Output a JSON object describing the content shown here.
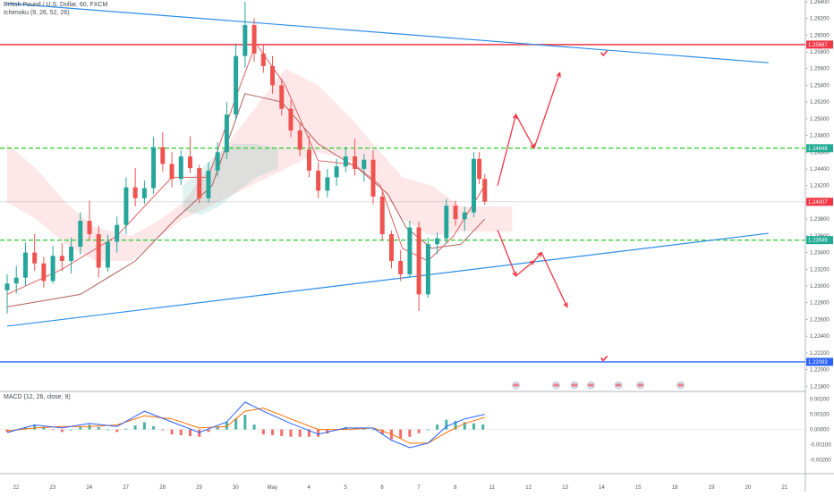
{
  "chart_data": [
    {
      "type": "candlestick",
      "title": "British Pound / U.S. Dollar, 60, FXCM",
      "indicator_label": "Ichimoku (9, 26, 52, 26)",
      "price_scale": [
        "1.26400",
        "1.26200",
        "1.26000",
        "1.25800",
        "1.25600",
        "1.25400",
        "1.25200",
        "1.25000",
        "1.24800",
        "1.24600",
        "1.24400",
        "1.24200",
        "1.24000",
        "1.23800",
        "1.23600",
        "1.23400",
        "1.23200",
        "1.23000",
        "1.22800",
        "1.22600",
        "1.22400",
        "1.22200",
        "1.22000",
        "1.21800"
      ],
      "ylim": [
        1.2175,
        1.2642
      ],
      "time_labels": [
        "22",
        "23",
        "24",
        "27",
        "28",
        "29",
        "30",
        "May",
        "4",
        "5",
        "6",
        "7",
        "8",
        "11",
        "12",
        "13",
        "14",
        "15",
        "18",
        "19",
        "20",
        "21"
      ],
      "price_badges": [
        {
          "label": "1.25887",
          "value": 1.25887,
          "color": "#f23645"
        },
        {
          "label": "1.24648",
          "value": 1.24648,
          "color": "#22ab94"
        },
        {
          "label": "1.24007",
          "value": 1.24007,
          "color": "#f23645"
        },
        {
          "label": "1.23549",
          "value": 1.23549,
          "color": "#22ab94"
        },
        {
          "label": "1.22093",
          "value": 1.22093,
          "color": "#2962ff"
        }
      ],
      "horizontal_levels": [
        {
          "value": 1.25887,
          "style": "solid",
          "color": "#f23645"
        },
        {
          "value": 1.24648,
          "style": "dashed",
          "color": "#37d137"
        },
        {
          "value": 1.23549,
          "style": "dashed",
          "color": "#37d137"
        },
        {
          "value": 1.22093,
          "style": "solid",
          "color": "#2962ff"
        }
      ],
      "trend_lines": [
        {
          "from": [
            0,
            1.2638
          ],
          "to": [
            20.8,
            1.2567
          ],
          "color": "#2c8ee8"
        },
        {
          "from": [
            0,
            1.2252
          ],
          "to": [
            20.8,
            1.2363
          ],
          "color": "#2c8ee8"
        }
      ],
      "candles": [
        {
          "x": 0.0,
          "o": 1.2295,
          "h": 1.2314,
          "l": 1.2267,
          "c": 1.2303
        },
        {
          "x": 0.25,
          "o": 1.2303,
          "h": 1.2324,
          "l": 1.2291,
          "c": 1.231
        },
        {
          "x": 0.5,
          "o": 1.231,
          "h": 1.2352,
          "l": 1.23,
          "c": 1.234
        },
        {
          "x": 0.75,
          "o": 1.234,
          "h": 1.2362,
          "l": 1.2318,
          "c": 1.2327
        },
        {
          "x": 1.0,
          "o": 1.2327,
          "h": 1.2335,
          "l": 1.2298,
          "c": 1.2306
        },
        {
          "x": 1.25,
          "o": 1.2306,
          "h": 1.2348,
          "l": 1.2303,
          "c": 1.2336
        },
        {
          "x": 1.5,
          "o": 1.2336,
          "h": 1.2351,
          "l": 1.2318,
          "c": 1.233
        },
        {
          "x": 1.75,
          "o": 1.233,
          "h": 1.2358,
          "l": 1.2315,
          "c": 1.2347
        },
        {
          "x": 2.0,
          "o": 1.2347,
          "h": 1.2388,
          "l": 1.2338,
          "c": 1.2378
        },
        {
          "x": 2.25,
          "o": 1.2378,
          "h": 1.2402,
          "l": 1.2355,
          "c": 1.2362
        },
        {
          "x": 2.5,
          "o": 1.2362,
          "h": 1.2372,
          "l": 1.231,
          "c": 1.2322
        },
        {
          "x": 2.75,
          "o": 1.2322,
          "h": 1.2361,
          "l": 1.2317,
          "c": 1.2353
        },
        {
          "x": 3.0,
          "o": 1.2353,
          "h": 1.2383,
          "l": 1.234,
          "c": 1.2373
        },
        {
          "x": 3.25,
          "o": 1.2373,
          "h": 1.243,
          "l": 1.2362,
          "c": 1.2418
        },
        {
          "x": 3.5,
          "o": 1.2418,
          "h": 1.2441,
          "l": 1.2395,
          "c": 1.2405
        },
        {
          "x": 3.75,
          "o": 1.2405,
          "h": 1.2426,
          "l": 1.2398,
          "c": 1.2417
        },
        {
          "x": 4.0,
          "o": 1.2417,
          "h": 1.2478,
          "l": 1.241,
          "c": 1.2466
        },
        {
          "x": 4.25,
          "o": 1.2466,
          "h": 1.2484,
          "l": 1.2437,
          "c": 1.2446
        },
        {
          "x": 4.5,
          "o": 1.2446,
          "h": 1.246,
          "l": 1.2418,
          "c": 1.2428
        },
        {
          "x": 4.75,
          "o": 1.2428,
          "h": 1.2462,
          "l": 1.2421,
          "c": 1.2455
        },
        {
          "x": 5.0,
          "o": 1.2455,
          "h": 1.2479,
          "l": 1.2435,
          "c": 1.2441
        },
        {
          "x": 5.25,
          "o": 1.2441,
          "h": 1.2445,
          "l": 1.2399,
          "c": 1.2405
        },
        {
          "x": 5.5,
          "o": 1.2405,
          "h": 1.2448,
          "l": 1.24,
          "c": 1.2438
        },
        {
          "x": 5.75,
          "o": 1.2438,
          "h": 1.2472,
          "l": 1.2431,
          "c": 1.246
        },
        {
          "x": 6.0,
          "o": 1.246,
          "h": 1.252,
          "l": 1.2452,
          "c": 1.2505
        },
        {
          "x": 6.25,
          "o": 1.2505,
          "h": 1.259,
          "l": 1.2498,
          "c": 1.2575
        },
        {
          "x": 6.5,
          "o": 1.2575,
          "h": 1.264,
          "l": 1.2561,
          "c": 1.2612
        },
        {
          "x": 6.75,
          "o": 1.2612,
          "h": 1.262,
          "l": 1.2568,
          "c": 1.2578
        },
        {
          "x": 7.0,
          "o": 1.2578,
          "h": 1.2589,
          "l": 1.2555,
          "c": 1.2563
        },
        {
          "x": 7.25,
          "o": 1.2563,
          "h": 1.2575,
          "l": 1.253,
          "c": 1.254
        },
        {
          "x": 7.5,
          "o": 1.254,
          "h": 1.2548,
          "l": 1.2504,
          "c": 1.2512
        },
        {
          "x": 7.75,
          "o": 1.2512,
          "h": 1.2522,
          "l": 1.2478,
          "c": 1.2486
        },
        {
          "x": 8.0,
          "o": 1.2486,
          "h": 1.2495,
          "l": 1.2455,
          "c": 1.2463
        },
        {
          "x": 8.25,
          "o": 1.2463,
          "h": 1.248,
          "l": 1.243,
          "c": 1.2438
        },
        {
          "x": 8.5,
          "o": 1.2438,
          "h": 1.2448,
          "l": 1.2405,
          "c": 1.2414
        },
        {
          "x": 8.75,
          "o": 1.2414,
          "h": 1.244,
          "l": 1.2406,
          "c": 1.243
        },
        {
          "x": 9.0,
          "o": 1.243,
          "h": 1.2452,
          "l": 1.242,
          "c": 1.2443
        },
        {
          "x": 9.25,
          "o": 1.2443,
          "h": 1.2466,
          "l": 1.2436,
          "c": 1.2455
        },
        {
          "x": 9.5,
          "o": 1.2455,
          "h": 1.2476,
          "l": 1.2432,
          "c": 1.244
        },
        {
          "x": 9.75,
          "o": 1.244,
          "h": 1.2458,
          "l": 1.2425,
          "c": 1.2451
        },
        {
          "x": 10.0,
          "o": 1.2451,
          "h": 1.2462,
          "l": 1.2398,
          "c": 1.2407
        },
        {
          "x": 10.25,
          "o": 1.2407,
          "h": 1.2412,
          "l": 1.2354,
          "c": 1.2362
        },
        {
          "x": 10.5,
          "o": 1.2362,
          "h": 1.2366,
          "l": 1.2321,
          "c": 1.233
        },
        {
          "x": 10.75,
          "o": 1.233,
          "h": 1.2343,
          "l": 1.2306,
          "c": 1.2314
        },
        {
          "x": 11.0,
          "o": 1.2314,
          "h": 1.2378,
          "l": 1.231,
          "c": 1.237
        },
        {
          "x": 11.25,
          "o": 1.237,
          "h": 1.2377,
          "l": 1.227,
          "c": 1.229
        },
        {
          "x": 11.5,
          "o": 1.229,
          "h": 1.2358,
          "l": 1.2286,
          "c": 1.235
        },
        {
          "x": 11.75,
          "o": 1.235,
          "h": 1.2364,
          "l": 1.2338,
          "c": 1.2357
        },
        {
          "x": 12.0,
          "o": 1.2357,
          "h": 1.2404,
          "l": 1.235,
          "c": 1.2396
        },
        {
          "x": 12.25,
          "o": 1.2396,
          "h": 1.2402,
          "l": 1.2372,
          "c": 1.238
        },
        {
          "x": 12.5,
          "o": 1.238,
          "h": 1.2395,
          "l": 1.2366,
          "c": 1.2388
        },
        {
          "x": 12.75,
          "o": 1.2388,
          "h": 1.246,
          "l": 1.2382,
          "c": 1.2452
        },
        {
          "x": 12.9,
          "o": 1.2452,
          "h": 1.246,
          "l": 1.2422,
          "c": 1.2428
        },
        {
          "x": 13.05,
          "o": 1.2428,
          "h": 1.2434,
          "l": 1.2397,
          "c": 1.2401
        }
      ],
      "tenkan": [
        [
          0,
          1.229
        ],
        [
          1.5,
          1.232
        ],
        [
          3,
          1.236
        ],
        [
          4.5,
          1.243
        ],
        [
          5.5,
          1.243
        ],
        [
          6.2,
          1.252
        ],
        [
          6.8,
          1.259
        ],
        [
          7.6,
          1.254
        ],
        [
          8.5,
          1.245
        ],
        [
          9.5,
          1.2445
        ],
        [
          10.2,
          1.242
        ],
        [
          10.8,
          1.2345
        ],
        [
          11.5,
          1.233
        ],
        [
          12.2,
          1.236
        ],
        [
          13.05,
          1.242
        ]
      ],
      "kijun": [
        [
          0,
          1.2275
        ],
        [
          2,
          1.229
        ],
        [
          3.5,
          1.233
        ],
        [
          4.6,
          1.238
        ],
        [
          5.6,
          1.242
        ],
        [
          6.5,
          1.253
        ],
        [
          7.5,
          1.252
        ],
        [
          8.5,
          1.247
        ],
        [
          9.6,
          1.244
        ],
        [
          10.4,
          1.241
        ],
        [
          10.9,
          1.237
        ],
        [
          11.6,
          1.2345
        ],
        [
          12.4,
          1.235
        ],
        [
          13.05,
          1.238
        ]
      ],
      "cloud_green": [
        [
          4.8,
          1.239,
          1.242
        ],
        [
          5.3,
          1.2385,
          1.244
        ],
        [
          5.8,
          1.2395,
          1.246
        ],
        [
          6.2,
          1.241,
          1.247
        ],
        [
          6.8,
          1.243,
          1.247
        ],
        [
          7.4,
          1.244,
          1.2465
        ]
      ],
      "cloud_red": [
        [
          0,
          1.24,
          1.247
        ],
        [
          0.8,
          1.238,
          1.244
        ],
        [
          1.6,
          1.235,
          1.24
        ],
        [
          2.4,
          1.233,
          1.237
        ],
        [
          3.4,
          1.233,
          1.236
        ],
        [
          4.2,
          1.236,
          1.238
        ],
        [
          4.8,
          1.238,
          1.24
        ],
        [
          7.6,
          1.244,
          1.256
        ],
        [
          8.5,
          1.246,
          1.254
        ],
        [
          9.4,
          1.245,
          1.25
        ],
        [
          10.0,
          1.243,
          1.247
        ],
        [
          10.8,
          1.238,
          1.243
        ],
        [
          11.6,
          1.236,
          1.242
        ],
        [
          12.4,
          1.2365,
          1.2395
        ],
        [
          13.8,
          1.2365,
          1.2395
        ]
      ],
      "scenarios": [
        {
          "color": "#f23645",
          "points": [
            [
              13.4,
              1.242
            ],
            [
              13.9,
              1.2505
            ],
            [
              14.4,
              1.2465
            ],
            [
              15.1,
              1.2555
            ]
          ]
        },
        {
          "color": "#f23645",
          "points": [
            [
              13.4,
              1.2367
            ],
            [
              13.9,
              1.2312
            ],
            [
              14.4,
              1.233
            ],
            [
              14.6,
              1.234
            ],
            [
              15.3,
              1.2275
            ]
          ]
        }
      ],
      "checkmarks": [
        [
          16.3,
          1.2578
        ],
        [
          16.3,
          1.2213
        ]
      ]
    },
    {
      "type": "line",
      "indicator_label": "MACD (12, 26, close, 9)",
      "scale_labels": [
        "0.00200",
        "0.00100",
        "0.00000",
        "-0.00100",
        "-0.00200"
      ],
      "ylim": [
        -0.0029,
        0.0025
      ],
      "macd": [
        [
          0,
          -0.0002
        ],
        [
          0.75,
          0.0003
        ],
        [
          1.5,
          0.0001
        ],
        [
          2.25,
          0.0004
        ],
        [
          3,
          0.0002
        ],
        [
          3.75,
          0.0012
        ],
        [
          4.5,
          0.0005
        ],
        [
          5.25,
          -0.0002
        ],
        [
          6,
          0.0005
        ],
        [
          6.5,
          0.0018
        ],
        [
          7,
          0.0012
        ],
        [
          7.75,
          0.0004
        ],
        [
          8.5,
          -0.0003
        ],
        [
          9.25,
          0.0001
        ],
        [
          10,
          0.0001
        ],
        [
          10.5,
          -0.0007
        ],
        [
          11,
          -0.0012
        ],
        [
          11.5,
          -0.0009
        ],
        [
          12,
          0.0002
        ],
        [
          12.5,
          0.0007
        ],
        [
          13.05,
          0.001
        ]
      ],
      "signal": [
        [
          0,
          -0.0001
        ],
        [
          0.75,
          0.0001
        ],
        [
          1.5,
          0.0002
        ],
        [
          2.25,
          0.0002
        ],
        [
          3,
          0.0003
        ],
        [
          3.75,
          0.0009
        ],
        [
          4.5,
          0.0007
        ],
        [
          5.25,
          0.0001
        ],
        [
          6,
          0.0002
        ],
        [
          6.5,
          0.0012
        ],
        [
          7,
          0.0014
        ],
        [
          7.75,
          0.0007
        ],
        [
          8.5,
          0.0
        ],
        [
          9.25,
          0.0
        ],
        [
          10,
          0.0001
        ],
        [
          10.5,
          -0.0003
        ],
        [
          11,
          -0.0009
        ],
        [
          11.5,
          -0.0009
        ],
        [
          12,
          -0.0002
        ],
        [
          12.5,
          0.0004
        ],
        [
          13.05,
          0.0008
        ]
      ],
      "histogram_step": 0.25
    }
  ]
}
